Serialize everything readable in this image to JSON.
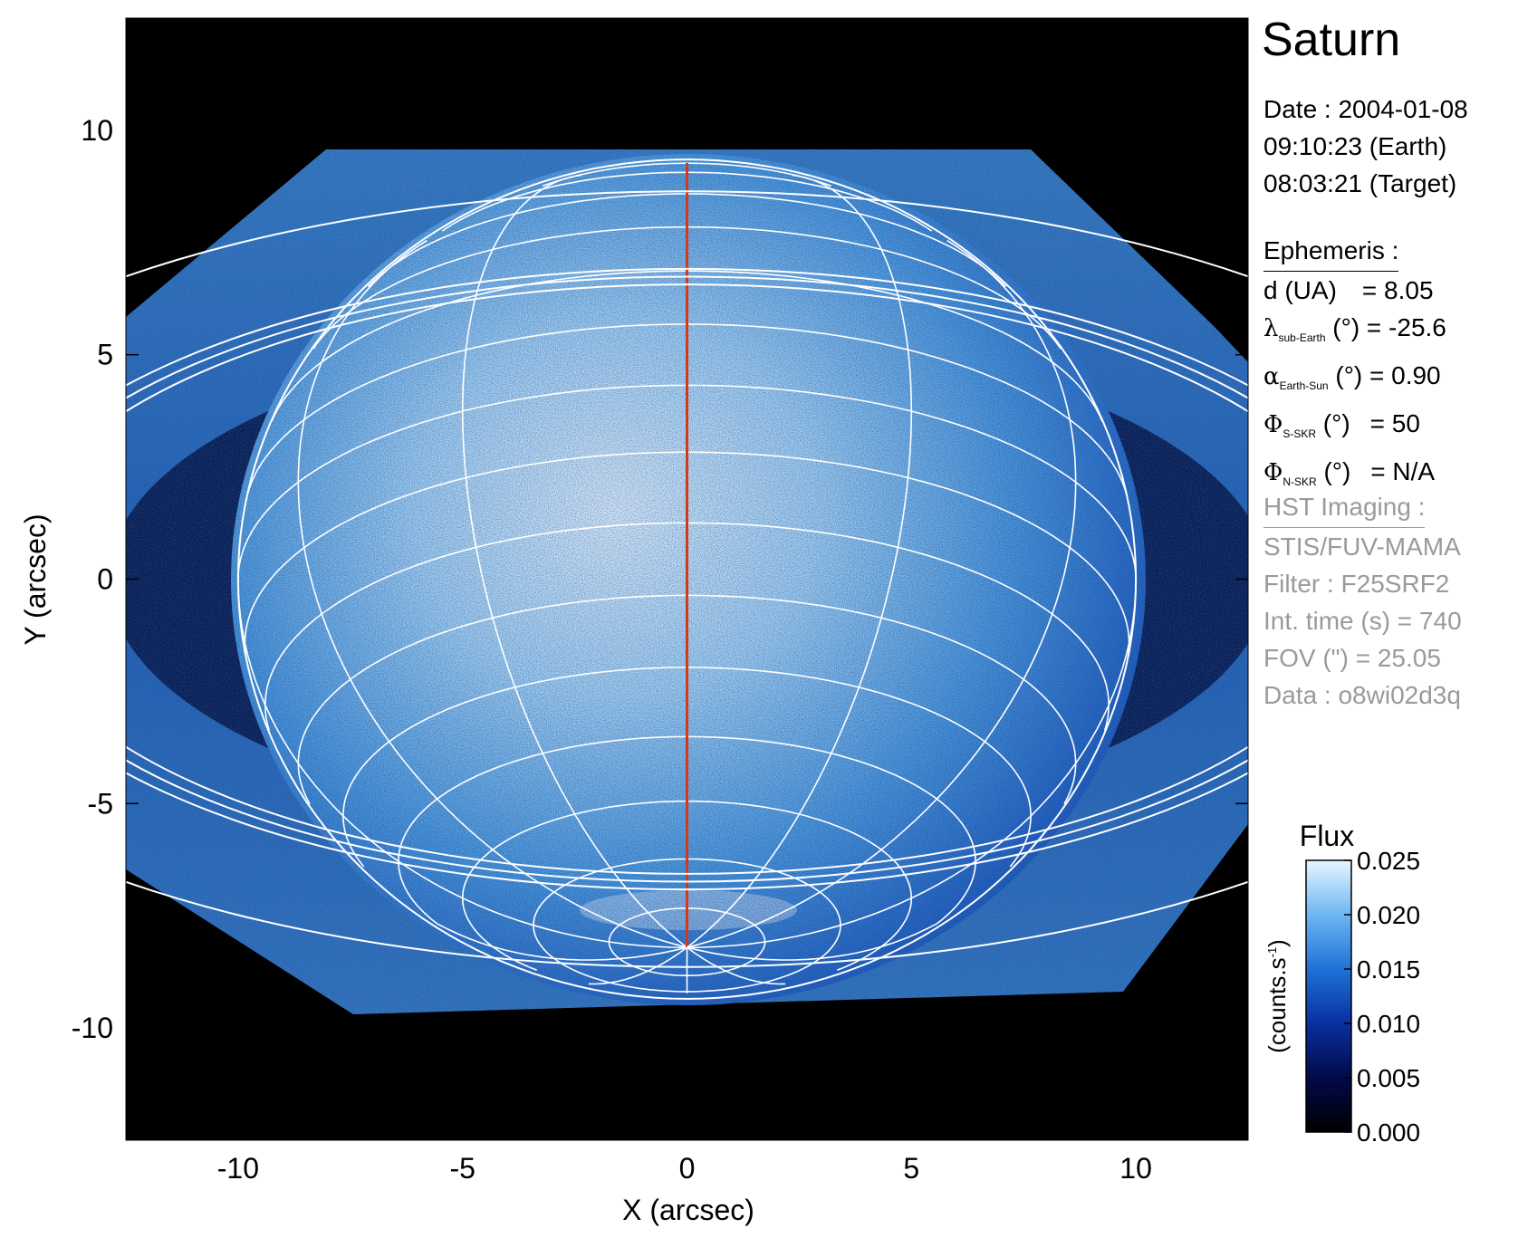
{
  "chart_data": {
    "type": "heatmap",
    "title": "Saturn",
    "xlabel": "X (arcsec)",
    "ylabel": "Y (arcsec)",
    "xlim": [
      -12.5,
      12.5
    ],
    "ylim": [
      -12.5,
      12.5
    ],
    "x_ticks": [
      -10,
      -5,
      0,
      5,
      10
    ],
    "y_ticks": [
      -10,
      -5,
      0,
      5,
      10
    ],
    "colorbar": {
      "title": "Flux",
      "label": "(counts.s",
      "label_sup": "-1",
      "label_end": ")",
      "ticks": [
        "0.000",
        "0.005",
        "0.010",
        "0.015",
        "0.020",
        "0.025"
      ],
      "range": [
        0.0,
        0.025
      ],
      "colors": [
        "#000000",
        "#020a4a",
        "#0a2fa0",
        "#1f72d6",
        "#6db6f2",
        "#e8f6ff"
      ]
    },
    "planet": {
      "center": [
        0.0,
        0.0
      ],
      "equatorial_radius": 10.0,
      "polar_radius": 9.1,
      "sub_observer_latitude_deg": -25.6
    },
    "rings": {
      "semi_major_axes": [
        20.0,
        16.0,
        15.6,
        15.2
      ],
      "ring_opening_ratio": 0.432
    },
    "colors": {
      "grid": "#ffffff",
      "central_meridian": "#d23a1c",
      "background": "#000000"
    }
  },
  "info": {
    "planet_name": "Saturn",
    "date_line": "Date : 2004-01-08",
    "time_earth": "09:10:23 (Earth)",
    "time_target": "08:03:21 (Target)",
    "ephemeris_header": "Ephemeris :",
    "distance": {
      "label": "d (UA)",
      "value": "= 8.05"
    },
    "sub_earth_lon": {
      "symbol": "λ",
      "sub": "sub-Earth",
      "unit": " (°)",
      "value": " = -25.6"
    },
    "phase_angle": {
      "symbol": "α",
      "sub": "Earth-Sun",
      "unit": " (°)",
      "value": " = 0.90"
    },
    "south_skr": {
      "symbol": "Φ",
      "sub": "S-SKR",
      "unit": " (°)",
      "value": "= 50"
    },
    "north_skr": {
      "symbol": "Φ",
      "sub": "N-SKR",
      "unit": " (°)",
      "value": "= N/A"
    },
    "hst_header": "HST Imaging :",
    "instrument": "STIS/FUV-MAMA",
    "filter": "Filter : F25SRF2",
    "int_time": "Int. time (s) = 740",
    "fov": "FOV (\") = 25.05",
    "dataset": "Data : o8wi02d3q"
  }
}
